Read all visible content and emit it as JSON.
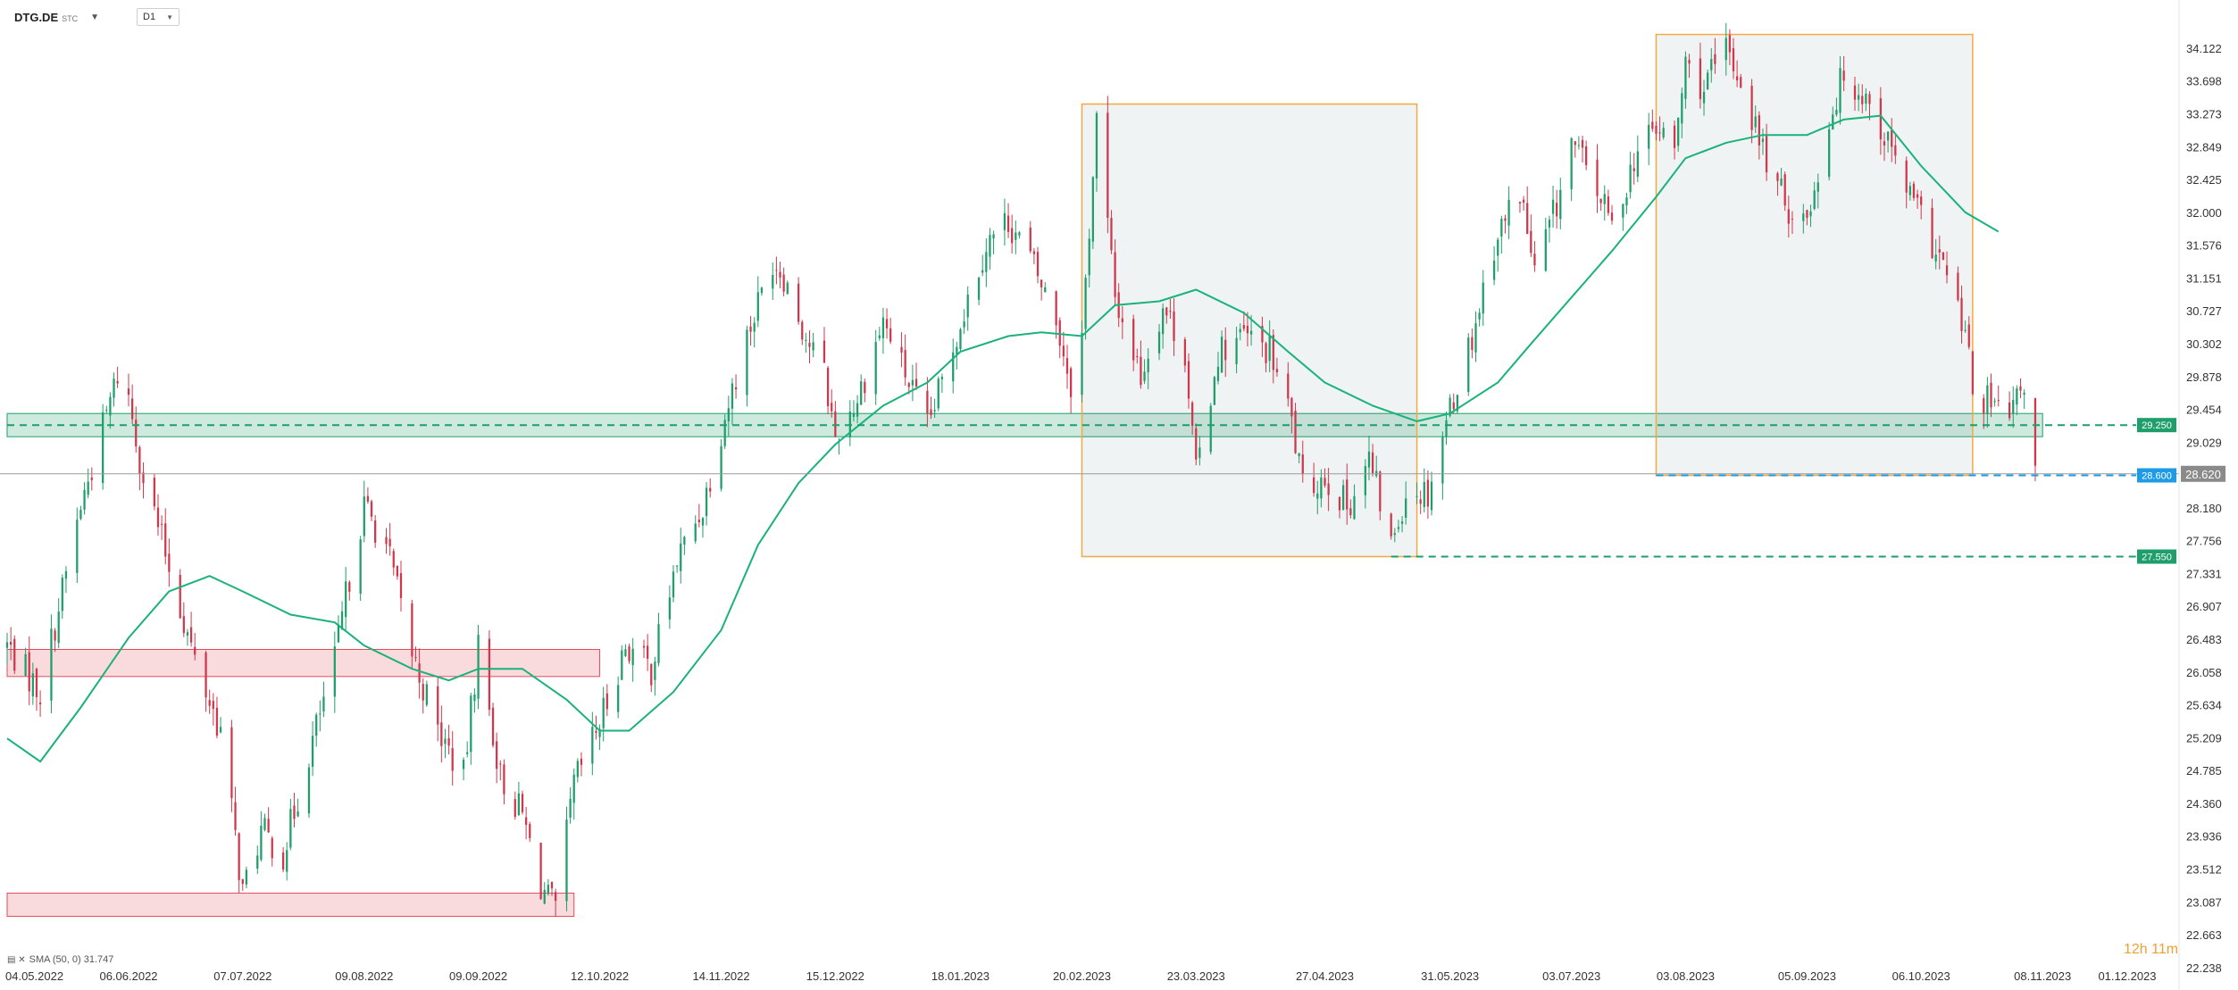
{
  "header": {
    "symbol": "DTG.DE",
    "symbol_sub": "STC",
    "timeframe": "D1"
  },
  "indicator_legend": {
    "text": "SMA (50, 0) 31.747"
  },
  "countdown": "12h 11m",
  "colors": {
    "up": "#1e9e6a",
    "down": "#d0374c",
    "sma": "#19b27a",
    "green_zone": "#1e9e6a",
    "red_zone": "#e34b5b",
    "box_border": "#f5a742",
    "last_price_bg": "#8a8a8a",
    "blue_tag": "#1e9be6"
  },
  "chart_data": {
    "type": "candlestick",
    "title": "",
    "xlabel": "",
    "ylabel": "",
    "ylim": [
      22.2,
      34.4
    ],
    "x_tick_labels": [
      "04.05.2022",
      "06.06.2022",
      "07.07.2022",
      "09.08.2022",
      "09.09.2022",
      "12.10.2022",
      "14.11.2022",
      "15.12.2022",
      "18.01.2023",
      "20.02.2023",
      "23.03.2023",
      "27.04.2023",
      "31.05.2023",
      "03.07.2023",
      "03.08.2023",
      "05.09.2023",
      "06.10.2023",
      "08.11.2023",
      "01.12.2023"
    ],
    "y_tick_labels": [
      "34.122",
      "33.698",
      "33.273",
      "32.849",
      "32.425",
      "32.000",
      "31.576",
      "31.151",
      "30.727",
      "30.302",
      "29.878",
      "29.454",
      "29.029",
      "28.180",
      "27.756",
      "27.331",
      "26.907",
      "26.483",
      "26.058",
      "25.634",
      "25.209",
      "24.785",
      "24.360",
      "23.936",
      "23.512",
      "23.087",
      "22.663",
      "22.238"
    ],
    "series": [
      {
        "name": "SMA (50, 0)",
        "points": [
          [
            "04.05.2022",
            25.2
          ],
          [
            "13.05.2022",
            24.9
          ],
          [
            "24.05.2022",
            25.6
          ],
          [
            "06.06.2022",
            26.5
          ],
          [
            "17.06.2022",
            27.1
          ],
          [
            "28.06.2022",
            27.3
          ],
          [
            "07.07.2022",
            27.1
          ],
          [
            "20.07.2022",
            26.8
          ],
          [
            "01.08.2022",
            26.7
          ],
          [
            "09.08.2022",
            26.4
          ],
          [
            "22.08.2022",
            26.1
          ],
          [
            "01.09.2022",
            25.95
          ],
          [
            "09.09.2022",
            26.1
          ],
          [
            "21.09.2022",
            26.1
          ],
          [
            "03.10.2022",
            25.7
          ],
          [
            "12.10.2022",
            25.3
          ],
          [
            "20.10.2022",
            25.3
          ],
          [
            "01.11.2022",
            25.8
          ],
          [
            "14.11.2022",
            26.6
          ],
          [
            "24.11.2022",
            27.7
          ],
          [
            "05.12.2022",
            28.5
          ],
          [
            "15.12.2022",
            29.0
          ],
          [
            "28.12.2022",
            29.5
          ],
          [
            "09.01.2023",
            29.8
          ],
          [
            "18.01.2023",
            30.2
          ],
          [
            "31.01.2023",
            30.4
          ],
          [
            "09.02.2023",
            30.45
          ],
          [
            "20.02.2023",
            30.4
          ],
          [
            "01.03.2023",
            30.8
          ],
          [
            "13.03.2023",
            30.85
          ],
          [
            "23.03.2023",
            31.0
          ],
          [
            "05.04.2023",
            30.7
          ],
          [
            "17.04.2023",
            30.2
          ],
          [
            "27.04.2023",
            29.8
          ],
          [
            "10.05.2023",
            29.5
          ],
          [
            "22.05.2023",
            29.3
          ],
          [
            "31.05.2023",
            29.4
          ],
          [
            "13.06.2023",
            29.8
          ],
          [
            "22.06.2023",
            30.3
          ],
          [
            "03.07.2023",
            30.9
          ],
          [
            "14.07.2023",
            31.5
          ],
          [
            "26.07.2023",
            32.2
          ],
          [
            "03.08.2023",
            32.7
          ],
          [
            "14.08.2023",
            32.9
          ],
          [
            "24.08.2023",
            33.0
          ],
          [
            "05.09.2023",
            33.0
          ],
          [
            "15.09.2023",
            33.2
          ],
          [
            "25.09.2023",
            33.25
          ],
          [
            "06.10.2023",
            32.6
          ],
          [
            "18.10.2023",
            32.0
          ],
          [
            "27.10.2023",
            31.75
          ]
        ]
      }
    ],
    "candle_path": [
      [
        "04.05.2022",
        26.4
      ],
      [
        "13.05.2022",
        25.8
      ],
      [
        "24.05.2022",
        28.2
      ],
      [
        "03.06.2022",
        29.9
      ],
      [
        "06.06.2022",
        29.6
      ],
      [
        "10.06.2022",
        28.6
      ],
      [
        "16.06.2022",
        27.6
      ],
      [
        "24.06.2022",
        26.2
      ],
      [
        "01.07.2022",
        25.3
      ],
      [
        "07.07.2022",
        23.2
      ],
      [
        "12.07.2022",
        24.0
      ],
      [
        "18.07.2022",
        23.7
      ],
      [
        "25.07.2022",
        25.0
      ],
      [
        "01.08.2022",
        26.2
      ],
      [
        "05.08.2022",
        27.3
      ],
      [
        "09.08.2022",
        28.2
      ],
      [
        "15.08.2022",
        27.7
      ],
      [
        "22.08.2022",
        26.3
      ],
      [
        "29.08.2022",
        25.3
      ],
      [
        "05.09.2022",
        24.7
      ],
      [
        "09.09.2022",
        26.4
      ],
      [
        "15.09.2022",
        24.7
      ],
      [
        "21.09.2022",
        24.2
      ],
      [
        "26.09.2022",
        23.3
      ],
      [
        "30.09.2022",
        22.95
      ],
      [
        "05.10.2022",
        24.6
      ],
      [
        "12.10.2022",
        25.4
      ],
      [
        "19.10.2022",
        26.4
      ],
      [
        "26.10.2022",
        26.1
      ],
      [
        "02.11.2022",
        27.5
      ],
      [
        "09.11.2022",
        28.2
      ],
      [
        "14.11.2022",
        29.2
      ],
      [
        "21.11.2022",
        30.4
      ],
      [
        "28.11.2022",
        31.4
      ],
      [
        "01.12.2022",
        31.2
      ],
      [
        "07.12.2022",
        30.4
      ],
      [
        "12.12.2022",
        29.9
      ],
      [
        "15.12.2022",
        29.1
      ],
      [
        "21.12.2022",
        29.6
      ],
      [
        "28.12.2022",
        30.6
      ],
      [
        "04.01.2023",
        29.8
      ],
      [
        "09.01.2023",
        29.2
      ],
      [
        "13.01.2023",
        29.8
      ],
      [
        "18.01.2023",
        30.6
      ],
      [
        "25.01.2023",
        31.6
      ],
      [
        "31.01.2023",
        31.9
      ],
      [
        "06.02.2023",
        31.4
      ],
      [
        "13.02.2023",
        30.6
      ],
      [
        "17.02.2023",
        29.8
      ],
      [
        "20.02.2023",
        30.4
      ],
      [
        "24.02.2023",
        33.2
      ],
      [
        "01.03.2023",
        30.9
      ],
      [
        "08.03.2023",
        29.9
      ],
      [
        "14.03.2023",
        30.8
      ],
      [
        "20.03.2023",
        30.2
      ],
      [
        "23.03.2023",
        28.6
      ],
      [
        "29.03.2023",
        30.2
      ],
      [
        "05.04.2023",
        30.4
      ],
      [
        "12.04.2023",
        30.2
      ],
      [
        "18.04.2023",
        29.3
      ],
      [
        "21.04.2023",
        28.4
      ],
      [
        "27.04.2023",
        28.6
      ],
      [
        "03.05.2023",
        28.2
      ],
      [
        "09.05.2023",
        28.8
      ],
      [
        "15.05.2023",
        27.7
      ],
      [
        "19.05.2023",
        28.4
      ],
      [
        "25.05.2023",
        28.4
      ],
      [
        "31.05.2023",
        29.5
      ],
      [
        "06.06.2023",
        30.4
      ],
      [
        "12.06.2023",
        31.6
      ],
      [
        "19.06.2023",
        32.3
      ],
      [
        "23.06.2023",
        31.2
      ],
      [
        "29.06.2023",
        32.1
      ],
      [
        "03.07.2023",
        32.9
      ],
      [
        "10.07.2023",
        32.3
      ],
      [
        "14.07.2023",
        31.8
      ],
      [
        "20.07.2023",
        32.7
      ],
      [
        "26.07.2023",
        33.1
      ],
      [
        "31.07.2023",
        32.8
      ],
      [
        "03.08.2023",
        33.9
      ],
      [
        "08.08.2023",
        33.6
      ],
      [
        "14.08.2023",
        34.1
      ],
      [
        "18.08.2023",
        33.7
      ],
      [
        "24.08.2023",
        32.8
      ],
      [
        "30.08.2023",
        32.1
      ],
      [
        "05.09.2023",
        31.9
      ],
      [
        "11.09.2023",
        33.2
      ],
      [
        "15.09.2023",
        33.8
      ],
      [
        "21.09.2023",
        33.5
      ],
      [
        "27.09.2023",
        32.9
      ],
      [
        "02.10.2023",
        32.3
      ],
      [
        "06.10.2023",
        31.9
      ],
      [
        "12.10.2023",
        31.3
      ],
      [
        "18.10.2023",
        30.4
      ],
      [
        "20.10.2023",
        29.7
      ],
      [
        "25.10.2023",
        29.5
      ],
      [
        "30.10.2023",
        29.3
      ],
      [
        "03.11.2023",
        29.8
      ],
      [
        "06.11.2023",
        28.62
      ]
    ],
    "zones": [
      {
        "type": "support",
        "from": "04.05.2022",
        "to": "08.11.2023",
        "low": 29.1,
        "high": 29.4,
        "color": "green"
      },
      {
        "type": "resistance",
        "from": "04.05.2022",
        "to": "12.10.2022",
        "low": 26.0,
        "high": 26.35,
        "color": "red"
      },
      {
        "type": "resistance",
        "from": "04.05.2022",
        "to": "05.10.2022",
        "low": 22.9,
        "high": 23.2,
        "color": "red"
      }
    ],
    "boxes": [
      {
        "from": "20.02.2023",
        "to": "22.05.2023",
        "low": 27.55,
        "high": 33.4
      },
      {
        "from": "26.07.2023",
        "to": "20.10.2023",
        "low": 28.6,
        "high": 34.3
      }
    ],
    "levels": [
      {
        "value": 29.25,
        "label": "29.250",
        "from": "04.05.2022",
        "color": "green"
      },
      {
        "value": 28.6,
        "label": "28.600",
        "from": "26.07.2023",
        "color": "blue"
      },
      {
        "value": 27.55,
        "label": "27.550",
        "from": "15.05.2023",
        "color": "green"
      }
    ],
    "last_price": {
      "value": 28.62,
      "label": "28.620"
    },
    "grid": false,
    "legend": "bottom-left"
  }
}
